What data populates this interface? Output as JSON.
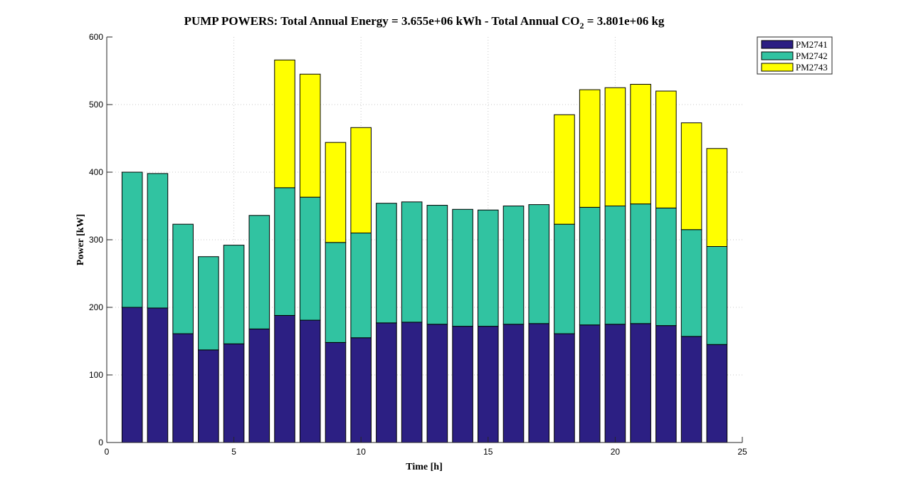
{
  "chart_data": {
    "type": "bar",
    "stacked": true,
    "title_main": "PUMP POWERS: Total Annual Energy = 3.655e+06 kWh - Total Annual CO",
    "title_sub": "2",
    "title_end": " = 3.801e+06 kg",
    "xlabel": "Time [h]",
    "ylabel": "Power [kW]",
    "xlim": [
      0,
      25
    ],
    "ylim": [
      0,
      600
    ],
    "xticks": [
      0,
      5,
      10,
      15,
      20,
      25
    ],
    "yticks": [
      0,
      100,
      200,
      300,
      400,
      500,
      600
    ],
    "grid": true,
    "legend_position": "top-right",
    "x": [
      1,
      2,
      3,
      4,
      5,
      6,
      7,
      8,
      9,
      10,
      11,
      12,
      13,
      14,
      15,
      16,
      17,
      18,
      19,
      20,
      21,
      22,
      23,
      24
    ],
    "series": [
      {
        "name": "PM2741",
        "color": "#2c1f83",
        "values": [
          200,
          199,
          161,
          137,
          146,
          168,
          188,
          181,
          148,
          155,
          177,
          178,
          175,
          172,
          172,
          175,
          176,
          161,
          174,
          175,
          176,
          173,
          157,
          145
        ]
      },
      {
        "name": "PM2742",
        "color": "#31c3a1",
        "values": [
          200,
          199,
          162,
          138,
          146,
          168,
          189,
          182,
          148,
          155,
          177,
          178,
          176,
          173,
          172,
          175,
          176,
          162,
          174,
          175,
          177,
          174,
          158,
          145
        ]
      },
      {
        "name": "PM2743",
        "color": "#ffff00",
        "values": [
          0,
          0,
          0,
          0,
          0,
          0,
          189,
          182,
          148,
          156,
          0,
          0,
          0,
          0,
          0,
          0,
          0,
          162,
          174,
          175,
          177,
          173,
          158,
          145
        ]
      }
    ]
  }
}
